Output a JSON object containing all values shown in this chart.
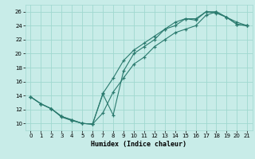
{
  "xlabel": "Humidex (Indice chaleur)",
  "bg_color": "#c8ece8",
  "grid_color": "#a0d8d0",
  "line_color": "#2a7a6e",
  "xlim": [
    -0.5,
    21.5
  ],
  "ylim": [
    9,
    27
  ],
  "xticks": [
    0,
    1,
    2,
    3,
    4,
    5,
    6,
    7,
    8,
    9,
    10,
    11,
    12,
    13,
    14,
    15,
    16,
    17,
    18,
    19,
    20,
    21
  ],
  "yticks": [
    10,
    12,
    14,
    16,
    18,
    20,
    22,
    24,
    26
  ],
  "line1_x": [
    0,
    1,
    2,
    3,
    4,
    5,
    6,
    7,
    8,
    9,
    10,
    11,
    12,
    13,
    14,
    15,
    16,
    17,
    18,
    19,
    20,
    21
  ],
  "line1_y": [
    13.8,
    12.8,
    12.1,
    11.0,
    10.5,
    10.0,
    9.9,
    14.3,
    16.5,
    19.0,
    20.5,
    21.5,
    22.5,
    23.5,
    24.0,
    25.0,
    25.0,
    26.0,
    25.8,
    25.2,
    24.2,
    24.0
  ],
  "line2_x": [
    0,
    1,
    2,
    3,
    4,
    5,
    6,
    7,
    8,
    9,
    10,
    11,
    12,
    13,
    14,
    15,
    16,
    17,
    18,
    19,
    20,
    21
  ],
  "line2_y": [
    13.8,
    12.8,
    12.1,
    11.0,
    10.5,
    10.0,
    9.9,
    11.5,
    14.5,
    16.5,
    18.5,
    19.5,
    21.0,
    22.0,
    23.0,
    23.5,
    24.0,
    25.5,
    26.0,
    25.2,
    24.5,
    24.0
  ],
  "line3_x": [
    0,
    1,
    2,
    3,
    4,
    5,
    6,
    7,
    8,
    9,
    10,
    11,
    12,
    13,
    14,
    15,
    16,
    17,
    18,
    19,
    20,
    21
  ],
  "line3_y": [
    13.8,
    12.8,
    12.1,
    10.9,
    10.4,
    10.0,
    9.9,
    14.2,
    11.2,
    17.5,
    20.0,
    21.0,
    22.0,
    23.5,
    24.5,
    25.0,
    24.8,
    26.0,
    26.0,
    25.2,
    24.2,
    24.0
  ]
}
